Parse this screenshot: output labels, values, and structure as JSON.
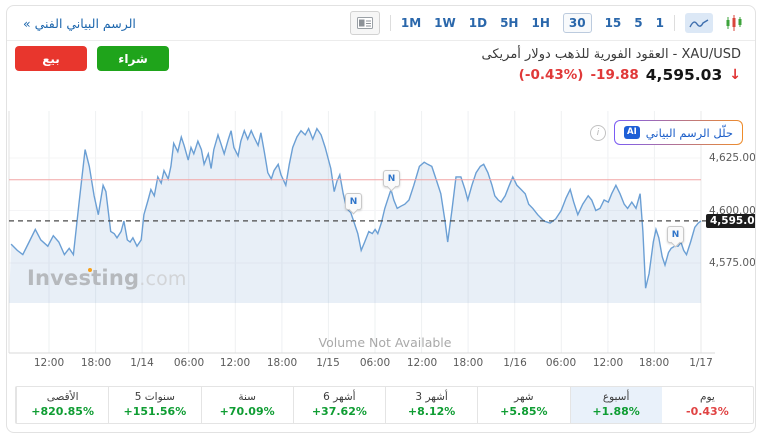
{
  "toolbar": {
    "link_label": "الرسم البياني الفني »",
    "timeframes": [
      "1M",
      "1W",
      "1D",
      "5H",
      "1H",
      "30",
      "15",
      "5",
      "1"
    ],
    "selected_timeframe": "30"
  },
  "header": {
    "title": "XAU/USD - العقود الفورية للذهب دولار أمريكى",
    "price": "4,595.03",
    "change": "-19.88",
    "change_pct": "(-0.43%)",
    "direction_icon": "↓",
    "sell_label": "بيع",
    "buy_label": "شراء",
    "ai_badge": "AI",
    "ai_button_label": "حلّل الرسم البياني",
    "info_icon_glyph": "i"
  },
  "chart": {
    "watermark_brand": "Investing",
    "watermark_suffix": ".com",
    "volume_note": "Volume Not Available",
    "y_ticks": [
      {
        "value": 4625,
        "label": "4,625.00"
      },
      {
        "value": 4600,
        "label": "4,600.00"
      },
      {
        "value": 4575,
        "label": "4,575.00"
      }
    ],
    "price_tag": {
      "value": 4595.03,
      "label": "4,595.03"
    },
    "current_price_line": 4595.03,
    "red_line_price": 4614.6,
    "news_markers": [
      {
        "x": 0.496,
        "price": 4599,
        "label": "N"
      },
      {
        "x": 0.552,
        "price": 4610,
        "label": "N"
      },
      {
        "x": 0.962,
        "price": 4583,
        "label": "N"
      }
    ],
    "colors": {
      "line": "#6b9fd4",
      "fill": "rgba(125,166,210,0.18)",
      "red_line": "#f2a5a5",
      "dashed": "#4a4a4a",
      "grid": "#eef0f2",
      "axis": "#d8d8d8"
    }
  },
  "chart_data": {
    "type": "area",
    "symbol": "XAU/USD",
    "title": "XAU/USD 30-minute chart",
    "x_axis_labels": [
      "12:00",
      "18:00",
      "1/14",
      "06:00",
      "12:00",
      "18:00",
      "1/15",
      "06:00",
      "12:00",
      "18:00",
      "1/16",
      "06:00",
      "12:00",
      "18:00",
      "1/17"
    ],
    "y_axis_ticks": [
      4575,
      4600,
      4625
    ],
    "ylim": [
      4557,
      4648
    ],
    "series": [
      {
        "name": "XAU/USD",
        "points": [
          [
            0.003,
            4584
          ],
          [
            0.012,
            4581
          ],
          [
            0.02,
            4579
          ],
          [
            0.029,
            4585
          ],
          [
            0.038,
            4591
          ],
          [
            0.046,
            4586
          ],
          [
            0.056,
            4583
          ],
          [
            0.064,
            4588
          ],
          [
            0.072,
            4585
          ],
          [
            0.08,
            4579
          ],
          [
            0.087,
            4582
          ],
          [
            0.093,
            4579
          ],
          [
            0.101,
            4603
          ],
          [
            0.11,
            4629
          ],
          [
            0.116,
            4621
          ],
          [
            0.123,
            4607
          ],
          [
            0.129,
            4598
          ],
          [
            0.136,
            4612
          ],
          [
            0.14,
            4609
          ],
          [
            0.147,
            4590
          ],
          [
            0.152,
            4589
          ],
          [
            0.156,
            4587
          ],
          [
            0.162,
            4590
          ],
          [
            0.166,
            4595
          ],
          [
            0.171,
            4586
          ],
          [
            0.175,
            4585
          ],
          [
            0.179,
            4587
          ],
          [
            0.185,
            4583
          ],
          [
            0.191,
            4586
          ],
          [
            0.195,
            4598
          ],
          [
            0.201,
            4605
          ],
          [
            0.205,
            4610
          ],
          [
            0.21,
            4607
          ],
          [
            0.215,
            4616
          ],
          [
            0.22,
            4613
          ],
          [
            0.224,
            4619
          ],
          [
            0.23,
            4615
          ],
          [
            0.234,
            4621
          ],
          [
            0.238,
            4632
          ],
          [
            0.244,
            4628
          ],
          [
            0.249,
            4635
          ],
          [
            0.253,
            4631
          ],
          [
            0.259,
            4624
          ],
          [
            0.263,
            4630
          ],
          [
            0.267,
            4627
          ],
          [
            0.273,
            4633
          ],
          [
            0.278,
            4629
          ],
          [
            0.282,
            4622
          ],
          [
            0.288,
            4627
          ],
          [
            0.292,
            4620
          ],
          [
            0.296,
            4629
          ],
          [
            0.302,
            4636
          ],
          [
            0.306,
            4632
          ],
          [
            0.311,
            4627
          ],
          [
            0.317,
            4634
          ],
          [
            0.321,
            4638
          ],
          [
            0.325,
            4630
          ],
          [
            0.331,
            4626
          ],
          [
            0.335,
            4633
          ],
          [
            0.34,
            4638
          ],
          [
            0.345,
            4634
          ],
          [
            0.35,
            4638
          ],
          [
            0.354,
            4635
          ],
          [
            0.36,
            4631
          ],
          [
            0.364,
            4637
          ],
          [
            0.369,
            4628
          ],
          [
            0.374,
            4618
          ],
          [
            0.379,
            4615
          ],
          [
            0.383,
            4619
          ],
          [
            0.389,
            4622
          ],
          [
            0.393,
            4617
          ],
          [
            0.4,
            4612
          ],
          [
            0.405,
            4622
          ],
          [
            0.41,
            4630
          ],
          [
            0.416,
            4635
          ],
          [
            0.422,
            4638
          ],
          [
            0.428,
            4636
          ],
          [
            0.433,
            4639
          ],
          [
            0.439,
            4634
          ],
          [
            0.445,
            4639
          ],
          [
            0.451,
            4636
          ],
          [
            0.457,
            4630
          ],
          [
            0.461,
            4625
          ],
          [
            0.465,
            4620
          ],
          [
            0.47,
            4609
          ],
          [
            0.474,
            4614
          ],
          [
            0.478,
            4617
          ],
          [
            0.483,
            4608
          ],
          [
            0.488,
            4601
          ],
          [
            0.494,
            4599
          ],
          [
            0.5,
            4593
          ],
          [
            0.504,
            4589
          ],
          [
            0.509,
            4581
          ],
          [
            0.514,
            4585
          ],
          [
            0.52,
            4590
          ],
          [
            0.525,
            4589
          ],
          [
            0.529,
            4591
          ],
          [
            0.533,
            4589
          ],
          [
            0.538,
            4594
          ],
          [
            0.543,
            4601
          ],
          [
            0.549,
            4607
          ],
          [
            0.552,
            4610
          ],
          [
            0.556,
            4605
          ],
          [
            0.561,
            4601
          ],
          [
            0.566,
            4602
          ],
          [
            0.572,
            4603
          ],
          [
            0.578,
            4605
          ],
          [
            0.585,
            4612
          ],
          [
            0.593,
            4621
          ],
          [
            0.6,
            4623
          ],
          [
            0.605,
            4622
          ],
          [
            0.611,
            4621
          ],
          [
            0.617,
            4615
          ],
          [
            0.624,
            4608
          ],
          [
            0.63,
            4595
          ],
          [
            0.634,
            4585
          ],
          [
            0.64,
            4600
          ],
          [
            0.646,
            4616
          ],
          [
            0.653,
            4616
          ],
          [
            0.659,
            4610
          ],
          [
            0.663,
            4605
          ],
          [
            0.669,
            4612
          ],
          [
            0.675,
            4618
          ],
          [
            0.681,
            4621
          ],
          [
            0.686,
            4622
          ],
          [
            0.692,
            4618
          ],
          [
            0.698,
            4612
          ],
          [
            0.702,
            4607
          ],
          [
            0.707,
            4605
          ],
          [
            0.711,
            4604
          ],
          [
            0.717,
            4607
          ],
          [
            0.723,
            4612
          ],
          [
            0.728,
            4616
          ],
          [
            0.734,
            4612
          ],
          [
            0.74,
            4610
          ],
          [
            0.746,
            4608
          ],
          [
            0.751,
            4603
          ],
          [
            0.757,
            4601
          ],
          [
            0.764,
            4598
          ],
          [
            0.773,
            4595
          ],
          [
            0.782,
            4594
          ],
          [
            0.79,
            4596
          ],
          [
            0.798,
            4600
          ],
          [
            0.805,
            4606
          ],
          [
            0.811,
            4610
          ],
          [
            0.816,
            4604
          ],
          [
            0.822,
            4598
          ],
          [
            0.829,
            4603
          ],
          [
            0.837,
            4607
          ],
          [
            0.842,
            4605
          ],
          [
            0.848,
            4600
          ],
          [
            0.854,
            4601
          ],
          [
            0.86,
            4605
          ],
          [
            0.866,
            4604
          ],
          [
            0.871,
            4608
          ],
          [
            0.877,
            4612
          ],
          [
            0.883,
            4608
          ],
          [
            0.889,
            4603
          ],
          [
            0.894,
            4601
          ],
          [
            0.9,
            4604
          ],
          [
            0.906,
            4601
          ],
          [
            0.912,
            4608
          ],
          [
            0.916,
            4590
          ],
          [
            0.92,
            4563
          ],
          [
            0.925,
            4570
          ],
          [
            0.931,
            4585
          ],
          [
            0.935,
            4591
          ],
          [
            0.939,
            4587
          ],
          [
            0.944,
            4578
          ],
          [
            0.948,
            4574
          ],
          [
            0.953,
            4580
          ],
          [
            0.957,
            4582
          ],
          [
            0.962,
            4583
          ],
          [
            0.967,
            4583
          ],
          [
            0.971,
            4585
          ],
          [
            0.975,
            4581
          ],
          [
            0.979,
            4579
          ],
          [
            0.985,
            4585
          ],
          [
            0.991,
            4592
          ],
          [
            0.996,
            4594
          ],
          [
            1,
            4595.03
          ]
        ]
      }
    ]
  },
  "performance": {
    "cells": [
      {
        "label": "يوم",
        "value": "-0.43%",
        "trend": "down",
        "selected": false
      },
      {
        "label": "أسبوع",
        "value": "+1.88%",
        "trend": "up",
        "selected": true
      },
      {
        "label": "شهر",
        "value": "+5.85%",
        "trend": "up",
        "selected": false
      },
      {
        "label": "3 أشهر",
        "value": "+8.12%",
        "trend": "up",
        "selected": false
      },
      {
        "label": "6 أشهر",
        "value": "+37.62%",
        "trend": "up",
        "selected": false
      },
      {
        "label": "سنة",
        "value": "+70.09%",
        "trend": "up",
        "selected": false
      },
      {
        "label": "5 سنوات",
        "value": "+151.56%",
        "trend": "up",
        "selected": false
      },
      {
        "label": "الأقصى",
        "value": "+820.85%",
        "trend": "up",
        "selected": false
      }
    ]
  },
  "colors": {
    "up": "#0f9d33",
    "down": "#e04343",
    "buy": "#1fa41b",
    "sell": "#e8362d"
  }
}
